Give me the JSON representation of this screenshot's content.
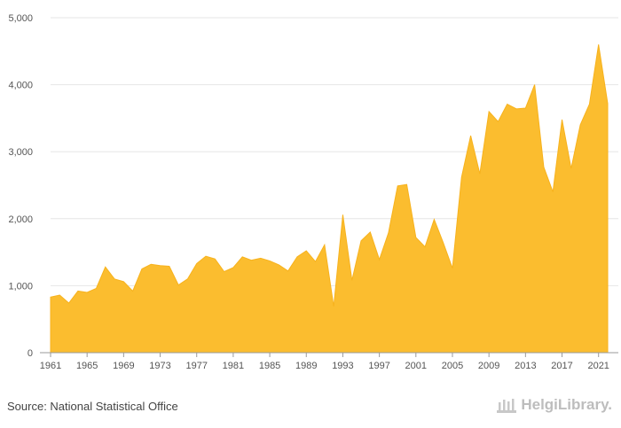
{
  "chart_data": {
    "type": "area",
    "x": [
      1961,
      1962,
      1963,
      1964,
      1965,
      1966,
      1967,
      1968,
      1969,
      1970,
      1971,
      1972,
      1973,
      1974,
      1975,
      1976,
      1977,
      1978,
      1979,
      1980,
      1981,
      1982,
      1983,
      1984,
      1985,
      1986,
      1987,
      1988,
      1989,
      1990,
      1991,
      1992,
      1993,
      1994,
      1995,
      1996,
      1997,
      1998,
      1999,
      2000,
      2001,
      2002,
      2003,
      2004,
      2005,
      2006,
      2007,
      2008,
      2009,
      2010,
      2011,
      2012,
      2013,
      2014,
      2015,
      2016,
      2017,
      2018,
      2019,
      2020,
      2021,
      2022
    ],
    "values": [
      830,
      860,
      740,
      920,
      900,
      960,
      1280,
      1100,
      1060,
      920,
      1250,
      1320,
      1300,
      1290,
      1010,
      1100,
      1330,
      1440,
      1400,
      1210,
      1270,
      1430,
      1380,
      1410,
      1370,
      1310,
      1220,
      1430,
      1520,
      1360,
      1610,
      690,
      2060,
      1080,
      1670,
      1800,
      1390,
      1790,
      2490,
      2510,
      1720,
      1580,
      1990,
      1640,
      1260,
      2620,
      3240,
      2670,
      3600,
      3450,
      3710,
      3640,
      3650,
      4000,
      2770,
      2400,
      3480,
      2750,
      3400,
      3710,
      4600,
      3720
    ],
    "xlabel": "",
    "ylabel": "",
    "ylim": [
      0,
      5000
    ],
    "yticks": [
      0,
      1000,
      2000,
      3000,
      4000,
      5000
    ],
    "ytick_labels": [
      "0",
      "1,000",
      "2,000",
      "3,000",
      "4,000",
      "5,000"
    ],
    "xticks": [
      1961,
      1965,
      1969,
      1973,
      1977,
      1981,
      1985,
      1989,
      1993,
      1997,
      2001,
      2005,
      2009,
      2013,
      2017,
      2021
    ],
    "grid": true,
    "fill_color": "#fbbd2f",
    "stroke_color": "#f7b21d",
    "grid_color": "#e6e6e6"
  },
  "footer": {
    "source": "Source: National Statistical Office"
  },
  "logo": {
    "text": "HelgiLibrary."
  }
}
